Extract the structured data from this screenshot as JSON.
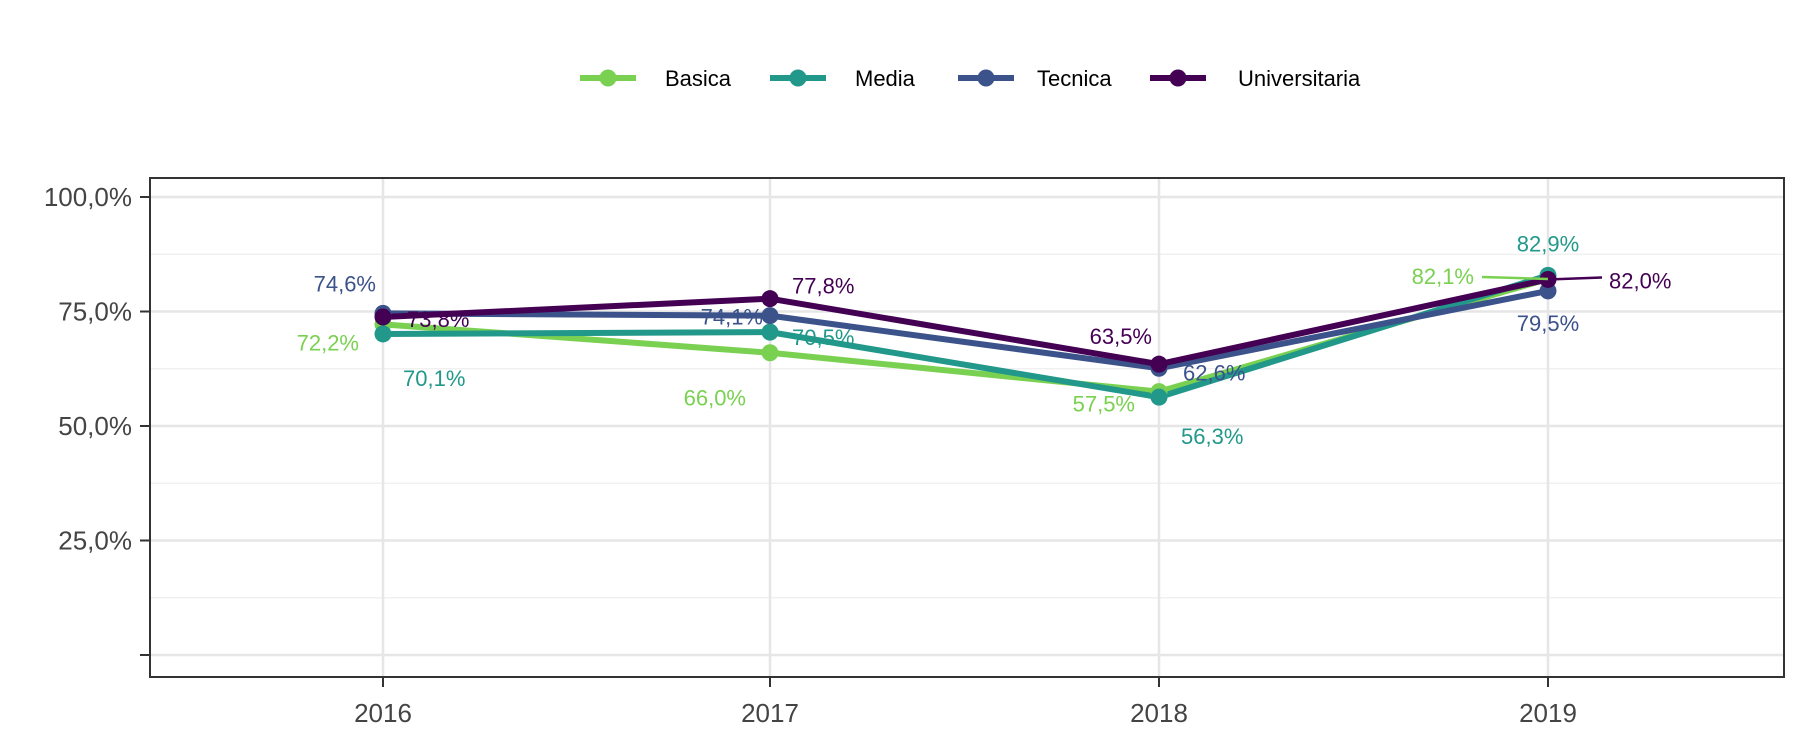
{
  "chart_data": {
    "type": "line",
    "categories": [
      "2016",
      "2017",
      "2018",
      "2019"
    ],
    "ylim": [
      0,
      105
    ],
    "yticks": [
      25,
      50,
      75,
      100
    ],
    "ytick_labels": [
      "25,0%",
      "50,0%",
      "75,0%",
      "100,0%"
    ],
    "grid": true,
    "legend_position": "top",
    "series": [
      {
        "name": "Basica",
        "color": "#7ad151",
        "values": [
          72.2,
          66.0,
          57.5,
          82.1
        ],
        "labels": [
          "72,2%",
          "66,0%",
          "57,5%",
          "82,1%"
        ]
      },
      {
        "name": "Media",
        "color": "#22988a",
        "values": [
          70.1,
          70.5,
          56.3,
          82.9
        ],
        "labels": [
          "70,1%",
          "70,5%",
          "56,3%",
          "82,9%"
        ]
      },
      {
        "name": "Tecnica",
        "color": "#3b528b",
        "values": [
          74.6,
          74.1,
          62.6,
          79.5
        ],
        "labels": [
          "74,6%",
          "74,1%",
          "62,6%",
          "79,5%"
        ]
      },
      {
        "name": "Universitaria",
        "color": "#440154",
        "values": [
          73.8,
          77.8,
          63.5,
          82.0
        ],
        "labels": [
          "73,8%",
          "77,8%",
          "63,5%",
          "82,0%"
        ]
      }
    ]
  }
}
